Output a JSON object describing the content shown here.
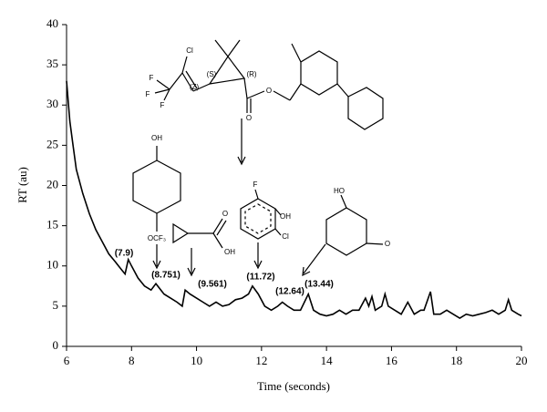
{
  "chart_data": {
    "type": "line",
    "xlabel": "Time (seconds)",
    "ylabel": "RT (au)",
    "x": [
      6.0,
      6.1,
      6.2,
      6.3,
      6.5,
      6.7,
      6.9,
      7.1,
      7.3,
      7.5,
      7.7,
      7.8,
      7.9,
      8.0,
      8.2,
      8.4,
      8.6,
      8.75,
      9.0,
      9.2,
      9.4,
      9.56,
      9.65,
      9.8,
      10.0,
      10.2,
      10.4,
      10.6,
      10.8,
      11.0,
      11.2,
      11.4,
      11.6,
      11.72,
      11.9,
      12.1,
      12.3,
      12.5,
      12.64,
      12.8,
      13.0,
      13.2,
      13.44,
      13.6,
      13.8,
      14.0,
      14.2,
      14.4,
      14.6,
      14.8,
      15.0,
      15.2,
      15.3,
      15.4,
      15.5,
      15.7,
      15.8,
      15.9,
      16.1,
      16.3,
      16.5,
      16.7,
      16.9,
      17.0,
      17.2,
      17.3,
      17.5,
      17.7,
      17.9,
      18.1,
      18.3,
      18.5,
      18.7,
      18.9,
      19.1,
      19.3,
      19.5,
      19.6,
      19.7,
      19.9,
      20.0
    ],
    "values": [
      33,
      28,
      25,
      22,
      19,
      16.5,
      14.5,
      13,
      11.5,
      10.5,
      9.5,
      9,
      10.8,
      10,
      8.5,
      7.5,
      7,
      7.8,
      6.5,
      6,
      5.5,
      5,
      7,
      6.5,
      6,
      5.5,
      5,
      5.5,
      5,
      5.2,
      5.8,
      6,
      6.5,
      7.5,
      6.5,
      5,
      4.5,
      5,
      5.5,
      5,
      4.5,
      4.5,
      6.5,
      4.5,
      4,
      3.8,
      4,
      4.5,
      4,
      4.5,
      4.5,
      6,
      5,
      6.2,
      4.5,
      5,
      6.5,
      5,
      4.5,
      4,
      5.5,
      4,
      4.5,
      4.5,
      6.8,
      4,
      4,
      4.5,
      4,
      3.5,
      4,
      3.8,
      4,
      4.2,
      4.5,
      4,
      4.5,
      5.8,
      4.5,
      4,
      3.8
    ],
    "color": "#000000",
    "xlim": [
      6,
      20
    ],
    "xticks": [
      6,
      8,
      10,
      12,
      14,
      16,
      18,
      20
    ],
    "ylim": [
      0,
      40
    ],
    "yticks": [
      0,
      5,
      10,
      15,
      20,
      25,
      30,
      35,
      40
    ],
    "annotations": [
      "(7.9)",
      "(8.751)",
      "(9.561)",
      "(11.72)",
      "(12.64)",
      "(13.44)",
      "Cl",
      "F",
      "F",
      "F",
      "(S)",
      "(R)",
      "(Z)",
      "O",
      "O",
      "OH",
      "OCF₃",
      "O",
      "OH",
      "F",
      "OH",
      "Cl",
      "HO",
      "O"
    ]
  }
}
